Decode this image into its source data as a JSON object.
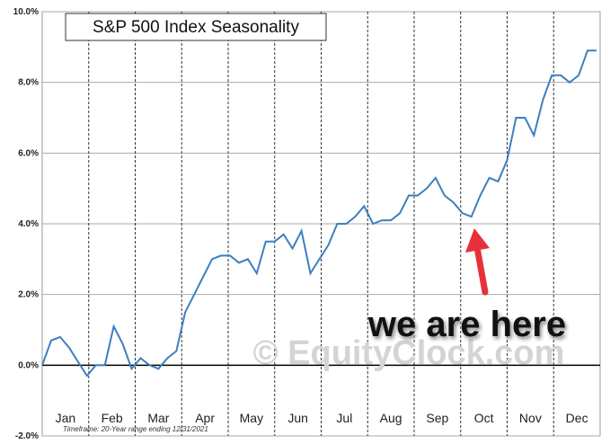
{
  "chart_data": {
    "type": "line",
    "title": "S&P 500 Index Seasonality",
    "footnote": "Timeframe: 20-Year range ending 12/31/2021",
    "annotation": "we are here",
    "watermark": "© EquityClock.com",
    "x_labels": [
      "Jan",
      "Feb",
      "Mar",
      "Apr",
      "May",
      "Jun",
      "Jul",
      "Aug",
      "Sep",
      "Oct",
      "Nov",
      "Dec"
    ],
    "series": [
      {
        "color": "#3d7fc1",
        "values": [
          0.0,
          0.7,
          0.8,
          0.5,
          0.1,
          -0.3,
          0.0,
          0.0,
          1.1,
          0.6,
          -0.1,
          0.2,
          0.0,
          -0.1,
          0.2,
          0.4,
          1.5,
          2.0,
          2.5,
          3.0,
          3.1,
          3.1,
          2.9,
          3.0,
          2.6,
          3.5,
          3.5,
          3.7,
          3.3,
          3.8,
          2.6,
          3.0,
          3.4,
          4.0,
          4.0,
          4.2,
          4.5,
          4.0,
          4.1,
          4.1,
          4.3,
          4.8,
          4.8,
          5.0,
          5.3,
          4.8,
          4.6,
          4.3,
          4.2,
          4.8,
          5.3,
          5.2,
          5.8,
          7.0,
          7.0,
          6.5,
          7.5,
          8.2,
          8.2,
          8.0,
          8.2,
          8.9,
          8.9
        ]
      }
    ],
    "ylim": [
      -2,
      10
    ],
    "yticks": [
      {
        "value": -2,
        "label": "-2.0%"
      },
      {
        "value": 0,
        "label": "0.0%"
      },
      {
        "value": 2,
        "label": "2.0%"
      },
      {
        "value": 4,
        "label": "4.0%"
      },
      {
        "value": 6,
        "label": "6.0%"
      },
      {
        "value": 8,
        "label": "8.0%"
      },
      {
        "value": 10,
        "label": "10.0%"
      }
    ],
    "grid": true
  }
}
